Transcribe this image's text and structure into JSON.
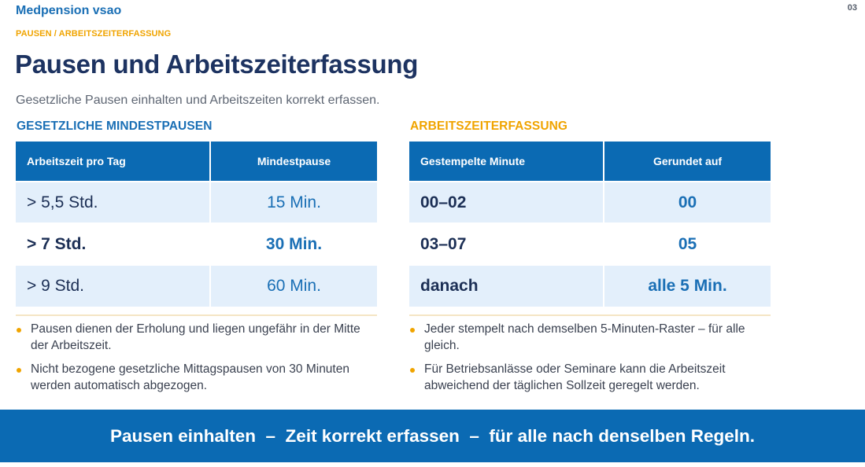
{
  "header": {
    "brand": "Medpension vsao",
    "page_number": "03",
    "breadcrumb": "PAUSEN / ARBEITSZEITERFASSUNG",
    "title": "Pausen und Arbeitszeiterfassung",
    "subtitle": "Gesetzliche Pausen einhalten und Arbeitszeiten korrekt erfassen."
  },
  "left": {
    "heading": "GESETZLICHE MINDESTPAUSEN",
    "columns": [
      "Arbeitszeit pro Tag",
      "Mindestpause"
    ],
    "rows": [
      [
        "> 5,5 Std.",
        "15 Min."
      ],
      [
        "> 7 Std.",
        "30 Min."
      ],
      [
        "> 9 Std.",
        "60 Min."
      ]
    ],
    "notes": [
      "Pausen dienen der Erholung und liegen ungefähr in der Mitte der Arbeitszeit.",
      "Nicht bezogene gesetzliche Mittagspausen von 30 Minuten werden automatisch abgezogen."
    ]
  },
  "right": {
    "heading": "ARBEITSZEITERFASSUNG",
    "columns": [
      "Gestempelte Minute",
      "Gerundet auf"
    ],
    "rows": [
      [
        "00–02",
        "00"
      ],
      [
        "03–07",
        "05"
      ],
      [
        "danach",
        "alle 5 Min."
      ]
    ],
    "notes": [
      "Jeder stempelt nach demselben 5-Minuten-Raster – für alle gleich.",
      "Für Betriebsanlässe oder Seminare kann die Arbeitszeit abweichend der täglichen Sollzeit geregelt werden."
    ]
  },
  "banner": {
    "text": "Pausen einhalten  –  Zeit korrekt erfassen  –  für alle nach denselben Regeln."
  },
  "colors": {
    "primary_blue": "#0b6ab3",
    "accent_orange": "#f0a400",
    "title_navy": "#1d3361",
    "row_shade": "#e3effb"
  }
}
